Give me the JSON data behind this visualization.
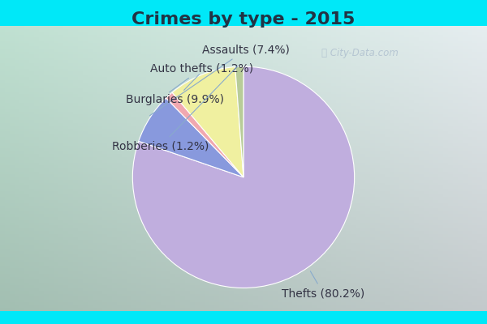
{
  "title": "Crimes by type - 2015",
  "labels": [
    "Thefts",
    "Assaults",
    "Auto thefts",
    "Burglaries",
    "Robberies"
  ],
  "percentages": [
    80.2,
    7.4,
    1.2,
    9.9,
    1.2
  ],
  "colors": [
    "#c0aede",
    "#8899dd",
    "#f0a8b0",
    "#f0f0a0",
    "#b8cc98"
  ],
  "label_texts": [
    "Thefts (80.2%)",
    "Assaults (7.4%)",
    "Auto thefts (1.2%)",
    "Burglaries (9.9%)",
    "Robberies (1.2%)"
  ],
  "background_border": "#00e8f8",
  "title_fontsize": 16,
  "label_fontsize": 10,
  "watermark": "ⓘ City-Data.com"
}
